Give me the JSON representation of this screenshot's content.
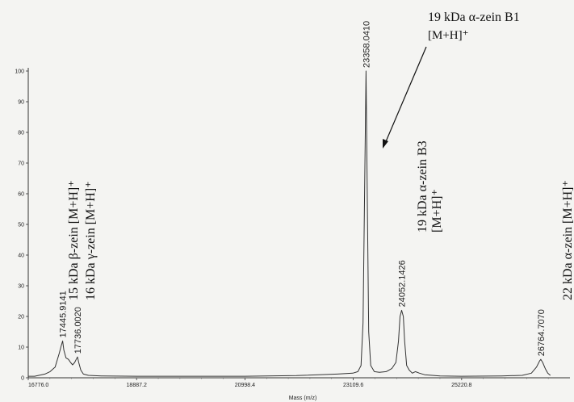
{
  "chart_data": {
    "type": "line",
    "title": "",
    "xlabel": "Mass (m/z)",
    "ylabel": "",
    "xlim": [
      16776.0,
      27332.0
    ],
    "ylim": [
      0,
      100
    ],
    "x_ticks": [
      "16776.0",
      "18887.2",
      "20998.4",
      "23109.6",
      "25220.8"
    ],
    "y_ticks": [
      "0",
      "10",
      "20",
      "30",
      "40",
      "50",
      "60",
      "70",
      "80",
      "90",
      "100"
    ],
    "grid": false,
    "series": [
      {
        "x": [
          16776,
          16900,
          17100,
          17200,
          17300,
          17380,
          17420,
          17445.9,
          17470,
          17510,
          17560,
          17600,
          17640,
          17680,
          17710,
          17736.0,
          17760,
          17800,
          17850,
          17950,
          18200,
          18887,
          20000,
          20998,
          22000,
          22800,
          23100,
          23200,
          23260,
          23300,
          23330,
          23358.04,
          23385,
          23410,
          23450,
          23520,
          23620,
          23750,
          23860,
          23940,
          23990,
          24020,
          24052.14,
          24085,
          24110,
          24150,
          24200,
          24260,
          24320,
          24400,
          24500,
          24800,
          25220,
          26000,
          26400,
          26580,
          26680,
          26740,
          26764.7,
          26800,
          26850,
          26900,
          26950
        ],
        "values": [
          0.5,
          0.5,
          1.2,
          2.0,
          3.5,
          8.0,
          10.5,
          12.0,
          9.0,
          6.5,
          6.0,
          5.0,
          4.2,
          5.0,
          6.0,
          6.8,
          5.0,
          2.5,
          1.2,
          0.8,
          0.6,
          0.5,
          0.5,
          0.5,
          0.7,
          1.2,
          1.5,
          2.0,
          4.0,
          18.0,
          60.0,
          100.0,
          55.0,
          15.0,
          4.0,
          2.0,
          1.8,
          2.0,
          3.0,
          5.0,
          12.0,
          20.0,
          22.0,
          20.0,
          12.0,
          4.0,
          2.5,
          1.5,
          2.0,
          1.5,
          1.0,
          0.6,
          0.5,
          0.6,
          0.8,
          1.5,
          3.5,
          5.5,
          6.0,
          5.0,
          3.0,
          1.5,
          0.8
        ]
      }
    ],
    "peak_labels": [
      {
        "x": 17445.9,
        "y": 12.0,
        "text": "17445.9141"
      },
      {
        "x": 17736.0,
        "y": 6.8,
        "text": "17736.0020"
      },
      {
        "x": 23358.04,
        "y": 100.0,
        "text": "23358.0410"
      },
      {
        "x": 24052.14,
        "y": 22.0,
        "text": "24052.1426"
      },
      {
        "x": 26764.7,
        "y": 6.0,
        "text": "26764.7070"
      }
    ],
    "annotations": [
      {
        "text": "15 kDa β-zein [M+H]⁺"
      },
      {
        "text": "16 kDa γ-zein [M+H]⁺"
      },
      {
        "text": "19 kDa α-zein B1"
      },
      {
        "text": "[M+H]⁺"
      },
      {
        "text": "19 kDa α-zein B3"
      },
      {
        "text": "[M+H]⁺"
      },
      {
        "text": "22 kDa α-zein [M+H]⁺"
      }
    ]
  }
}
